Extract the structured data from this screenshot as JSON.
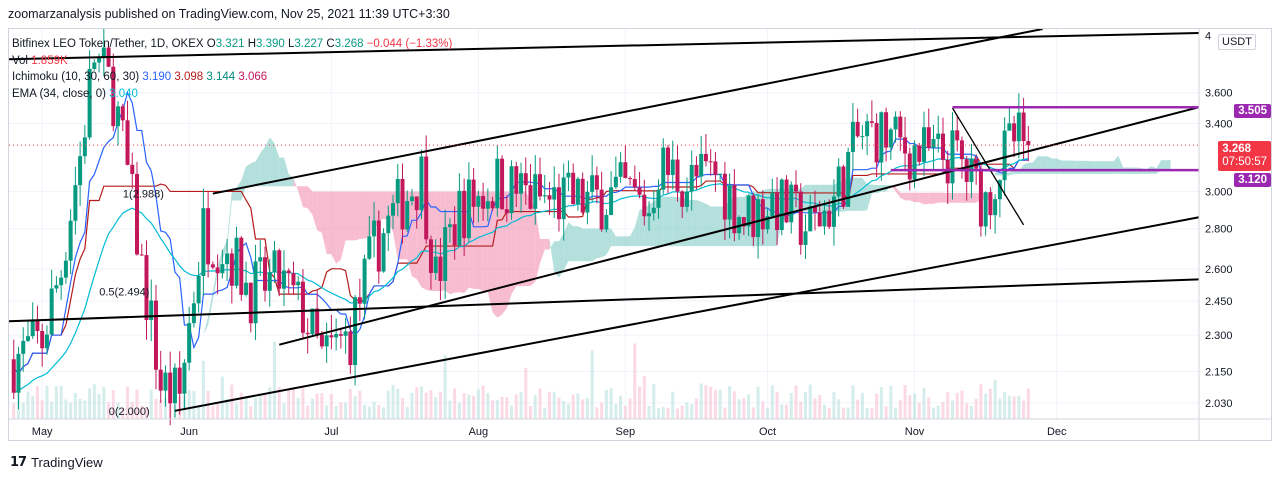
{
  "header": {
    "published": "zoomarzanalysis published on TradingView.com, Nov 25, 2021 11:39 UTC+3:30"
  },
  "legend": {
    "symbol": "Bitfinex LEO Token/Tether, 1D, OKEX",
    "o_label": "O",
    "o_value": "3.321",
    "h_label": "H",
    "h_value": "3.390",
    "l_label": "L",
    "l_value": "3.227",
    "c_label": "C",
    "c_value": "3.268",
    "change": "−0.044 (−1.33%)",
    "vol_label": "Vol",
    "vol_value": "1.859K",
    "ichimoku_label": "Ichimoku (10, 30, 60, 30)",
    "ichimoku_values": [
      "3.190",
      "3.098",
      "3.144",
      "3.066"
    ],
    "ema_label": "EMA (34, close, 0)",
    "ema_value": "3.040"
  },
  "currency": "USDT",
  "footer": {
    "logo_text": "TradingView"
  },
  "price_tags": [
    {
      "value": "3.505",
      "color": "#9c27b0"
    },
    {
      "value": "3.268",
      "countdown": "07:50:57",
      "color": "#f23645"
    },
    {
      "value": "3.120",
      "color": "#9c27b0"
    }
  ],
  "fib_labels": [
    "1(2.988)",
    "0.5(2.494)",
    "0(2.000)"
  ],
  "colors": {
    "up": "#089981",
    "down": "#c2185b",
    "tenkan": "#2962ff",
    "kijun": "#b71c1c",
    "ema": "#00bcd4",
    "cloud_bull": "#80cbc4",
    "cloud_bear": "#f48fb1",
    "trendline": "#000000",
    "resistance": "#9c27b0"
  },
  "chart_data": {
    "type": "candlestick",
    "title": "Bitfinex LEO Token/Tether, 1D, OKEX",
    "x_tick_labels": [
      "May",
      "Jun",
      "Jul",
      "Aug",
      "Sep",
      "Oct",
      "Nov",
      "Dec"
    ],
    "y_tick_labels": [
      "4",
      "3.600",
      "3.400",
      "3.000",
      "2.800",
      "2.600",
      "2.450",
      "2.300",
      "2.150",
      "2.030"
    ],
    "y_range": [
      1.97,
      4.05
    ],
    "y_scale": "log",
    "horizontal_levels": [
      3.505,
      3.12
    ],
    "last_close": 3.268,
    "price_path": [
      [
        "2021-04-25",
        2.2
      ],
      [
        "2021-05-01",
        2.28
      ],
      [
        "2021-05-05",
        2.6
      ],
      [
        "2021-05-09",
        3.2
      ],
      [
        "2021-05-12",
        3.85
      ],
      [
        "2021-05-16",
        3.6
      ],
      [
        "2021-05-19",
        3.1
      ],
      [
        "2021-05-22",
        2.6
      ],
      [
        "2021-05-26",
        2.1
      ],
      [
        "2021-05-30",
        2.05
      ],
      [
        "2021-06-04",
        2.8
      ],
      [
        "2021-06-09",
        2.7
      ],
      [
        "2021-06-14",
        2.5
      ],
      [
        "2021-06-20",
        2.55
      ],
      [
        "2021-06-25",
        2.4
      ],
      [
        "2021-06-29",
        2.2
      ],
      [
        "2021-07-05",
        2.3
      ],
      [
        "2021-07-10",
        2.7
      ],
      [
        "2021-07-16",
        2.95
      ],
      [
        "2021-07-20",
        3.1
      ],
      [
        "2021-07-23",
        2.55
      ],
      [
        "2021-07-28",
        2.9
      ],
      [
        "2021-08-05",
        3.05
      ],
      [
        "2021-08-15",
        2.95
      ],
      [
        "2021-08-25",
        2.95
      ],
      [
        "2021-09-01",
        3.0
      ],
      [
        "2021-09-06",
        2.9
      ],
      [
        "2021-09-08",
        3.15
      ],
      [
        "2021-09-14",
        3.05
      ],
      [
        "2021-09-20",
        3.1
      ],
      [
        "2021-09-26",
        2.85
      ],
      [
        "2021-10-02",
        2.95
      ],
      [
        "2021-10-10",
        2.8
      ],
      [
        "2021-10-15",
        2.95
      ],
      [
        "2021-10-20",
        3.3
      ],
      [
        "2021-10-24",
        3.35
      ],
      [
        "2021-10-30",
        3.25
      ],
      [
        "2021-11-05",
        3.2
      ],
      [
        "2021-11-10",
        3.2
      ],
      [
        "2021-11-13",
        3.05
      ],
      [
        "2021-11-16",
        2.95
      ],
      [
        "2021-11-19",
        3.15
      ],
      [
        "2021-11-22",
        3.3
      ],
      [
        "2021-11-25",
        3.268
      ]
    ]
  }
}
